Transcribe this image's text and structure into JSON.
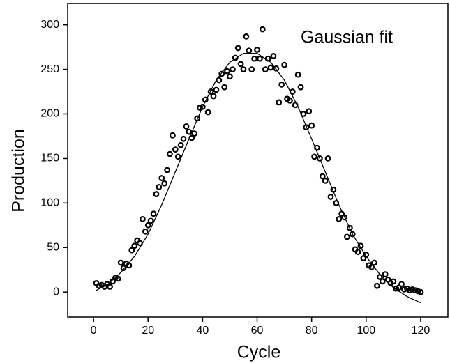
{
  "chart_data": {
    "type": "scatter",
    "xlabel": "Cycle",
    "ylabel": "Production",
    "annotation": "Gaussian fit",
    "xlim": [
      -9.5,
      130
    ],
    "ylim": [
      -28,
      324
    ],
    "xticks": [
      0,
      20,
      40,
      60,
      80,
      100,
      120
    ],
    "yticks": [
      0,
      50,
      100,
      150,
      200,
      250,
      300
    ],
    "series": [
      {
        "type": "scatter",
        "color": "#000000",
        "x": [
          1,
          2,
          3,
          4,
          5,
          6,
          7,
          8,
          9,
          10,
          11,
          12,
          13,
          14,
          15,
          16,
          17,
          18,
          19,
          20,
          21,
          22,
          23,
          24,
          25,
          26,
          27,
          28,
          29,
          30,
          31,
          32,
          33,
          34,
          35,
          36,
          37,
          38,
          39,
          40,
          41,
          42,
          43,
          44,
          45,
          46,
          47,
          48,
          49,
          50,
          51,
          52,
          53,
          54,
          55,
          56,
          57,
          58,
          59,
          60,
          61,
          62,
          63,
          64,
          65,
          66,
          67,
          68,
          69,
          70,
          71,
          72,
          73,
          74,
          75,
          76,
          77,
          78,
          79,
          80,
          81,
          82,
          83,
          84,
          85,
          86,
          87,
          88,
          89,
          90,
          91,
          92,
          93,
          94,
          95,
          96,
          97,
          98,
          99,
          100,
          101,
          102,
          103,
          104,
          105,
          106,
          107,
          108,
          109,
          110,
          111,
          112,
          113,
          114,
          115,
          116,
          117,
          118,
          119,
          120
        ],
        "values": [
          10,
          7,
          8,
          6,
          9,
          6,
          12,
          16,
          15,
          33,
          27,
          32,
          30,
          47,
          52,
          58,
          55,
          82,
          68,
          75,
          80,
          88,
          110,
          118,
          128,
          122,
          137,
          155,
          176,
          160,
          152,
          165,
          172,
          186,
          180,
          173,
          178,
          195,
          207,
          208,
          216,
          202,
          225,
          220,
          227,
          238,
          245,
          230,
          248,
          242,
          250,
          263,
          274,
          256,
          250,
          287,
          271,
          250,
          262,
          272,
          262,
          295,
          250,
          262,
          252,
          265,
          251,
          213,
          233,
          255,
          217,
          215,
          225,
          210,
          244,
          230,
          200,
          185,
          203,
          187,
          152,
          162,
          150,
          130,
          125,
          150,
          107,
          115,
          100,
          82,
          88,
          84,
          62,
          72,
          65,
          48,
          45,
          52,
          38,
          42,
          30,
          28,
          33,
          7,
          17,
          12,
          20,
          14,
          10,
          12,
          4,
          5,
          9,
          3,
          4,
          2,
          3,
          2,
          1,
          0
        ]
      },
      {
        "type": "line",
        "color": "#000000",
        "x": [
          1,
          5,
          10,
          15,
          20,
          25,
          30,
          35,
          40,
          45,
          50,
          55,
          60,
          65,
          70,
          75,
          80,
          85,
          90,
          95,
          100,
          105,
          110,
          115,
          120
        ],
        "values": [
          2,
          8,
          22,
          40,
          65,
          98,
          135,
          172,
          208,
          238,
          258,
          268,
          268,
          258,
          238,
          208,
          172,
          135,
          98,
          65,
          40,
          20,
          5,
          -5,
          -12
        ]
      }
    ]
  }
}
